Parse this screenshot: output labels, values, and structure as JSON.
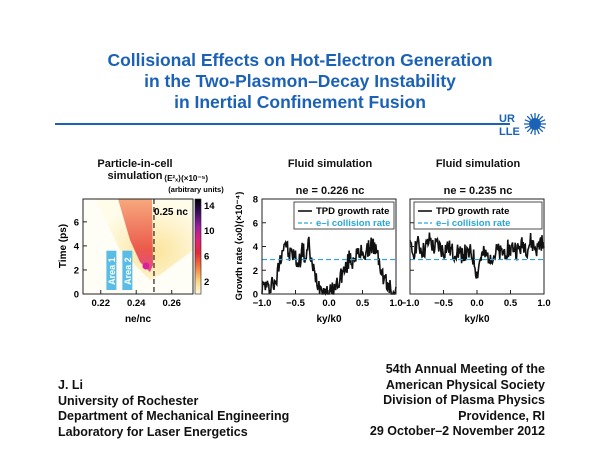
{
  "title_lines": [
    "Collisional Effects on Hot-Electron Generation",
    "in the Two-Plasmon–Decay Instability",
    "in Inertial Confinement Fusion"
  ],
  "logo": {
    "text_top": "UR",
    "text_bottom": "LLE",
    "color": "#1b62b6"
  },
  "author": {
    "lines": [
      "J. Li",
      "University of Rochester",
      "Department of Mechanical Engineering",
      "Laboratory for Laser Energetics"
    ]
  },
  "meeting": {
    "lines": [
      "54th Annual Meeting of the",
      "American Physical Society",
      "Division of Plasma Physics",
      "Providence, RI",
      "29 October–2 November 2012"
    ]
  },
  "chart_data": [
    {
      "type": "heatmap",
      "title": "Particle-in-cell simulation",
      "xlabel": "ne/nc",
      "ylabel": "Time (ps)",
      "xlim": [
        0.21,
        0.272
      ],
      "ylim": [
        0,
        7.9
      ],
      "xticks": [
        "0.22",
        "0.24",
        "0.26"
      ],
      "yticks": [
        "0",
        "2",
        "4",
        "6"
      ],
      "colorbar": {
        "label": "⟨E²ₓ⟩(×10⁻⁵)",
        "sublabel": "(arbitrary units)",
        "ticks": [
          "2",
          "6",
          "10",
          "14"
        ],
        "colors": [
          "#fffbe0",
          "#fbd27a",
          "#f47a3a",
          "#e8283a",
          "#e0207a",
          "#9b1fa0",
          "#3a1060",
          "#000000"
        ]
      },
      "annotation": "0.25 nc",
      "threshold_x": 0.25,
      "regions": [
        {
          "label": "Area 1",
          "x": 0.226
        },
        {
          "label": "Area 2",
          "x": 0.235
        }
      ],
      "region_color": "#5bbde6"
    },
    {
      "type": "line",
      "title": "Fluid simulation",
      "subtitle": "ne = 0.226 nc",
      "xlabel": "ky/k0",
      "ylabel": "Growth rate ⟨ω0⟩(×10⁻⁴)",
      "xlim": [
        -1,
        1
      ],
      "ylim": [
        0,
        8
      ],
      "xticks": [
        "−1.0",
        "−0.5",
        "0.0",
        "0.5",
        "1.0"
      ],
      "yticks": [
        "0",
        "2",
        "4",
        "6",
        "8"
      ],
      "legend": "top-right",
      "series": [
        {
          "name": "TPD growth rate",
          "color": "#111111",
          "x_step": 0.05,
          "x_start": -1,
          "values": [
            0.5,
            0.8,
            0.3,
            1.2,
            0.5,
            2.5,
            3.8,
            4.5,
            3.2,
            3.5,
            3.0,
            2.5,
            3.8,
            3.0,
            4.2,
            2.2,
            1.5,
            0.8,
            0.5,
            0.1,
            0,
            0.2,
            0.6,
            1.2,
            1.8,
            2.0,
            3.0,
            2.8,
            3.5,
            3.0,
            3.8,
            3.2,
            3.9,
            4.3,
            3.5,
            2.8,
            1.5,
            1.0,
            0.5,
            0.3,
            0.6
          ]
        },
        {
          "name": "e–i collision rate",
          "color": "#2aa6d8",
          "constant": 2.9
        }
      ]
    },
    {
      "type": "line",
      "title": "Fluid simulation",
      "subtitle": "ne = 0.235 nc",
      "xlabel": "ky/k0",
      "xlim": [
        -1,
        1
      ],
      "ylim": [
        0,
        8
      ],
      "xticks": [
        "−1.0",
        "−0.5",
        "0.0",
        "0.5",
        "1.0"
      ],
      "legend": "top",
      "series": [
        {
          "name": "TPD growth rate",
          "color": "#111111",
          "x_step": 0.05,
          "x_start": -1,
          "values": [
            3.8,
            3.5,
            4.3,
            3.9,
            3.6,
            4.0,
            4.6,
            3.8,
            4.1,
            3.9,
            3.5,
            4.0,
            3.7,
            3.4,
            3.8,
            3.3,
            3.5,
            3.2,
            3.4,
            3.0,
            1.6,
            3.0,
            3.3,
            3.1,
            3.4,
            3.2,
            3.6,
            3.3,
            3.5,
            3.8,
            3.7,
            4.0,
            3.6,
            3.9,
            4.2,
            3.8,
            4.4,
            4.0,
            3.7,
            4.5,
            3.9
          ]
        },
        {
          "name": "e–i collision rate",
          "color": "#2aa6d8",
          "constant": 2.9
        }
      ]
    }
  ]
}
